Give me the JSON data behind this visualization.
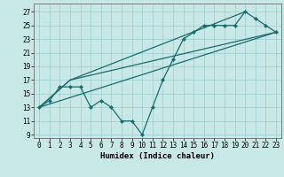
{
  "xlabel": "Humidex (Indice chaleur)",
  "ylabel": "",
  "xlim": [
    -0.5,
    23.5
  ],
  "ylim": [
    8.5,
    28.2
  ],
  "xticks": [
    0,
    1,
    2,
    3,
    4,
    5,
    6,
    7,
    8,
    9,
    10,
    11,
    12,
    13,
    14,
    15,
    16,
    17,
    18,
    19,
    20,
    21,
    22,
    23
  ],
  "yticks": [
    9,
    11,
    13,
    15,
    17,
    19,
    21,
    23,
    25,
    27
  ],
  "bg_color": "#c8e8e8",
  "line_color": "#1a6b6b",
  "grid_color": "#99cccc",
  "line1_x": [
    0,
    1,
    2,
    3,
    4,
    5,
    6,
    7,
    8,
    9,
    10,
    11,
    12,
    13,
    14,
    15,
    16,
    17,
    18,
    19,
    20,
    21,
    22,
    23
  ],
  "line1_y": [
    13,
    14,
    16,
    16,
    16,
    13,
    14,
    13,
    11,
    11,
    9,
    13,
    17,
    20,
    23,
    24,
    25,
    25,
    25,
    25,
    27,
    26,
    25,
    24
  ],
  "line2_x": [
    0,
    3,
    20
  ],
  "line2_y": [
    13,
    17,
    27
  ],
  "line3_x": [
    0,
    3,
    23
  ],
  "line3_y": [
    13,
    17,
    24
  ],
  "line4_x": [
    0,
    23
  ],
  "line4_y": [
    13,
    24
  ],
  "tick_fontsize": 5.5,
  "xlabel_fontsize": 6.5
}
